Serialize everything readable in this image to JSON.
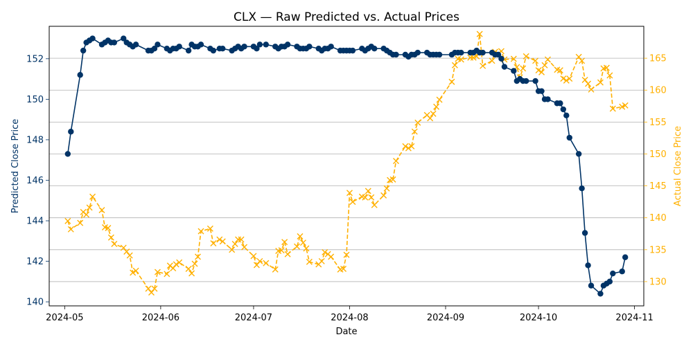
{
  "chart_data": {
    "type": "line",
    "title": "CLX — Raw Predicted vs. Actual Prices",
    "xlabel": "Date",
    "ylabel_left": "Predicted Close Price",
    "ylabel_right": "Actual Close Price",
    "x_ticks": [
      "2024-05",
      "2024-06",
      "2024-07",
      "2024-08",
      "2024-09",
      "2024-10",
      "2024-11"
    ],
    "x_range": [
      "2024-04-26",
      "2024-11-04"
    ],
    "y_left_ticks": [
      140,
      142,
      144,
      146,
      148,
      150,
      152
    ],
    "y_left_range": [
      139.8,
      153.6
    ],
    "y_right_ticks": [
      130,
      135,
      140,
      145,
      150,
      155,
      160,
      165
    ],
    "y_right_range": [
      126.2,
      170.0
    ],
    "grid": "horizontal, right axis",
    "colors": {
      "predicted": "#003366",
      "actual": "#FFB000"
    },
    "series": [
      {
        "axis": "left",
        "style": "solid line, circle markers",
        "x": [
          "2024-05-02",
          "2024-05-03",
          "2024-05-06",
          "2024-05-07",
          "2024-05-08",
          "2024-05-09",
          "2024-05-10",
          "2024-05-13",
          "2024-05-14",
          "2024-05-15",
          "2024-05-16",
          "2024-05-17",
          "2024-05-20",
          "2024-05-21",
          "2024-05-22",
          "2024-05-23",
          "2024-05-24",
          "2024-05-28",
          "2024-05-29",
          "2024-05-30",
          "2024-05-31",
          "2024-06-03",
          "2024-06-04",
          "2024-06-05",
          "2024-06-06",
          "2024-06-07",
          "2024-06-10",
          "2024-06-11",
          "2024-06-12",
          "2024-06-13",
          "2024-06-14",
          "2024-06-17",
          "2024-06-18",
          "2024-06-20",
          "2024-06-21",
          "2024-06-24",
          "2024-06-25",
          "2024-06-26",
          "2024-06-27",
          "2024-06-28",
          "2024-07-01",
          "2024-07-02",
          "2024-07-03",
          "2024-07-05",
          "2024-07-08",
          "2024-07-09",
          "2024-07-10",
          "2024-07-11",
          "2024-07-12",
          "2024-07-15",
          "2024-07-16",
          "2024-07-17",
          "2024-07-18",
          "2024-07-19",
          "2024-07-22",
          "2024-07-23",
          "2024-07-24",
          "2024-07-25",
          "2024-07-26",
          "2024-07-29",
          "2024-07-30",
          "2024-07-31",
          "2024-08-01",
          "2024-08-02",
          "2024-08-05",
          "2024-08-06",
          "2024-08-07",
          "2024-08-08",
          "2024-08-09",
          "2024-08-12",
          "2024-08-13",
          "2024-08-14",
          "2024-08-15",
          "2024-08-16",
          "2024-08-19",
          "2024-08-20",
          "2024-08-21",
          "2024-08-22",
          "2024-08-23",
          "2024-08-26",
          "2024-08-27",
          "2024-08-28",
          "2024-08-29",
          "2024-08-30",
          "2024-09-03",
          "2024-09-04",
          "2024-09-05",
          "2024-09-06",
          "2024-09-09",
          "2024-09-10",
          "2024-09-11",
          "2024-09-12",
          "2024-09-13",
          "2024-09-16",
          "2024-09-17",
          "2024-09-18",
          "2024-09-19",
          "2024-09-20",
          "2024-09-23",
          "2024-09-24",
          "2024-09-25",
          "2024-09-26",
          "2024-09-27",
          "2024-09-30",
          "2024-10-01",
          "2024-10-02",
          "2024-10-03",
          "2024-10-04",
          "2024-10-07",
          "2024-10-08",
          "2024-10-09",
          "2024-10-10",
          "2024-10-11",
          "2024-10-14",
          "2024-10-15",
          "2024-10-16",
          "2024-10-17",
          "2024-10-18",
          "2024-10-21",
          "2024-10-22",
          "2024-10-23",
          "2024-10-24",
          "2024-10-25",
          "2024-10-28",
          "2024-10-29"
        ],
        "values": [
          147.3,
          148.4,
          151.2,
          152.4,
          152.8,
          152.9,
          153.0,
          152.7,
          152.8,
          152.9,
          152.8,
          152.8,
          153.0,
          152.8,
          152.7,
          152.6,
          152.7,
          152.4,
          152.4,
          152.5,
          152.7,
          152.5,
          152.4,
          152.5,
          152.5,
          152.6,
          152.4,
          152.7,
          152.6,
          152.6,
          152.7,
          152.5,
          152.4,
          152.5,
          152.5,
          152.4,
          152.5,
          152.6,
          152.5,
          152.6,
          152.6,
          152.5,
          152.7,
          152.7,
          152.6,
          152.5,
          152.6,
          152.6,
          152.7,
          152.6,
          152.5,
          152.5,
          152.5,
          152.6,
          152.5,
          152.4,
          152.5,
          152.5,
          152.6,
          152.4,
          152.4,
          152.4,
          152.4,
          152.4,
          152.5,
          152.4,
          152.5,
          152.6,
          152.5,
          152.5,
          152.4,
          152.3,
          152.2,
          152.2,
          152.2,
          152.1,
          152.2,
          152.2,
          152.3,
          152.3,
          152.2,
          152.2,
          152.2,
          152.2,
          152.2,
          152.3,
          152.3,
          152.3,
          152.3,
          152.3,
          152.4,
          152.3,
          152.3,
          152.3,
          152.2,
          152.2,
          152.0,
          151.6,
          151.4,
          150.9,
          151.0,
          150.9,
          150.9,
          150.9,
          150.4,
          150.4,
          150.0,
          150.0,
          149.8,
          149.8,
          149.5,
          149.2,
          148.1,
          147.3,
          145.6,
          143.4,
          141.8,
          140.8,
          140.4,
          140.8,
          140.9,
          141.0,
          141.4,
          141.5,
          142.2
        ]
      },
      {
        "axis": "right",
        "style": "dashed line, x markers",
        "x": [
          "2024-05-02",
          "2024-05-03",
          "2024-05-06",
          "2024-05-07",
          "2024-05-08",
          "2024-05-09",
          "2024-05-10",
          "2024-05-13",
          "2024-05-14",
          "2024-05-15",
          "2024-05-16",
          "2024-05-17",
          "2024-05-20",
          "2024-05-21",
          "2024-05-22",
          "2024-05-23",
          "2024-05-24",
          "2024-05-28",
          "2024-05-29",
          "2024-05-30",
          "2024-05-31",
          "2024-06-03",
          "2024-06-04",
          "2024-06-05",
          "2024-06-06",
          "2024-06-07",
          "2024-06-10",
          "2024-06-11",
          "2024-06-12",
          "2024-06-13",
          "2024-06-14",
          "2024-06-17",
          "2024-06-18",
          "2024-06-20",
          "2024-06-21",
          "2024-06-24",
          "2024-06-25",
          "2024-06-26",
          "2024-06-27",
          "2024-06-28",
          "2024-07-01",
          "2024-07-02",
          "2024-07-03",
          "2024-07-05",
          "2024-07-08",
          "2024-07-09",
          "2024-07-10",
          "2024-07-11",
          "2024-07-12",
          "2024-07-15",
          "2024-07-16",
          "2024-07-17",
          "2024-07-18",
          "2024-07-19",
          "2024-07-22",
          "2024-07-23",
          "2024-07-24",
          "2024-07-25",
          "2024-07-26",
          "2024-07-29",
          "2024-07-30",
          "2024-07-31",
          "2024-08-01",
          "2024-08-02",
          "2024-08-05",
          "2024-08-06",
          "2024-08-07",
          "2024-08-08",
          "2024-08-09",
          "2024-08-12",
          "2024-08-13",
          "2024-08-14",
          "2024-08-15",
          "2024-08-16",
          "2024-08-19",
          "2024-08-20",
          "2024-08-21",
          "2024-08-22",
          "2024-08-23",
          "2024-08-26",
          "2024-08-27",
          "2024-08-28",
          "2024-08-29",
          "2024-08-30",
          "2024-09-03",
          "2024-09-04",
          "2024-09-05",
          "2024-09-06",
          "2024-09-09",
          "2024-09-10",
          "2024-09-11",
          "2024-09-12",
          "2024-09-13",
          "2024-09-16",
          "2024-09-17",
          "2024-09-18",
          "2024-09-19",
          "2024-09-20",
          "2024-09-23",
          "2024-09-24",
          "2024-09-25",
          "2024-09-26",
          "2024-09-27",
          "2024-09-30",
          "2024-10-01",
          "2024-10-02",
          "2024-10-03",
          "2024-10-04",
          "2024-10-07",
          "2024-10-08",
          "2024-10-09",
          "2024-10-10",
          "2024-10-11",
          "2024-10-14",
          "2024-10-15",
          "2024-10-16",
          "2024-10-17",
          "2024-10-18",
          "2024-10-21",
          "2024-10-22",
          "2024-10-23",
          "2024-10-24",
          "2024-10-25",
          "2024-10-28",
          "2024-10-29"
        ],
        "values": [
          139.5,
          138.2,
          139.2,
          140.9,
          140.5,
          141.6,
          143.3,
          141.2,
          138.5,
          138.4,
          136.9,
          135.9,
          135.3,
          134.7,
          134.1,
          131.4,
          131.7,
          128.9,
          128.3,
          128.9,
          131.5,
          131.2,
          132.5,
          132.1,
          132.7,
          133.0,
          132.0,
          131.3,
          132.8,
          133.9,
          137.9,
          138.3,
          136.0,
          136.6,
          136.3,
          135.0,
          135.9,
          136.6,
          136.6,
          135.4,
          134.0,
          132.6,
          133.2,
          132.9,
          131.9,
          134.8,
          134.9,
          136.2,
          134.3,
          135.5,
          137.1,
          136.1,
          135.2,
          133.1,
          132.7,
          133.2,
          134.6,
          134.3,
          133.9,
          131.9,
          132.0,
          134.2,
          143.9,
          142.5,
          143.3,
          143.2,
          144.2,
          143.2,
          142.0,
          143.5,
          144.6,
          145.9,
          146.0,
          148.9,
          151.2,
          150.9,
          151.2,
          153.5,
          154.9,
          156.1,
          155.6,
          156.3,
          157.4,
          158.5,
          161.3,
          163.9,
          164.9,
          164.8,
          165.1,
          165.1,
          165.3,
          168.8,
          163.8,
          164.6,
          166.0,
          165.7,
          166.1,
          164.8,
          164.9,
          163.6,
          162.0,
          163.4,
          165.3,
          164.6,
          163.1,
          162.8,
          163.9,
          164.8,
          163.2,
          163.1,
          161.8,
          161.5,
          161.8,
          165.2,
          164.6,
          161.6,
          161.0,
          160.1,
          161.2,
          163.4,
          163.5,
          162.3,
          157.1,
          157.4,
          157.6
        ]
      }
    ]
  }
}
